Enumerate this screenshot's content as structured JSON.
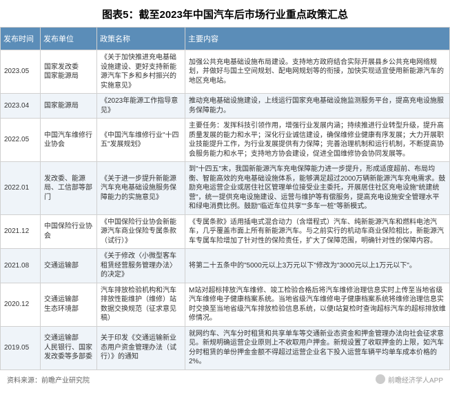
{
  "title": "图表5：截至2023年中国汽车后市场行业重点政策汇总",
  "columns": [
    "发布时间",
    "发布单位",
    "政策名称",
    "主要内容"
  ],
  "rows": [
    {
      "time": "2023.05",
      "unit": "国家发改委\n国家能源局",
      "policy": "《关于加快推进充电基础设施建设、更好支持新能源汽车下乡和乡村振兴的实施意见》",
      "content": "加强公共充电基础设施布局建设。支持地方政府结合实际开展县乡公共充电网络规划，并做好与国土空间规划、配电网规划等的衔接，加快实现适宜使用新能源汽车的地区充电站。"
    },
    {
      "time": "2023.04",
      "unit": "国家能源局",
      "policy": "《2023年能源工作指导意见》",
      "content": "推动充电基础设施建设，上线运行国家充电基础设施监测服务平台，提高充电设施服务保障能力。"
    },
    {
      "time": "2022.05",
      "unit": "中国汽车维修行业协会",
      "policy": "《中国汽车维修行业\"十四五\"发展规划》",
      "content": "主要任务：发挥科技引领作用，增强行业发展内涵；持续推进行业转型升级，提升高质量发展的能力和水平；深化行业诚信建设，确保维修业健康有序发展；大力开展职业技能提升工作，为行业发展提供有力保障；完善治理机制和运行机制，不断提高协会服务能力和水平；支持地方协会建设，促进全国维修协会协同发展等。"
    },
    {
      "time": "2022.01",
      "unit": "发改委、能源局、工信部等部门",
      "policy": "《关于进一步提升新能源汽车充电基础设施服务保障能力的实施意见》",
      "content": "到\"十四五\"末，我国新能源汽车充电保障能力进一步提升，形成适度超前、布局均衡、智能高效的充电基础设施体系，能够满足超过2000万辆新能源汽车充电需求。鼓励充电运营企业或居住社区管理单位接受业主委托，开展居住社区充电设施\"统建统营\"，统一提供充电设施建设、运营与维护等有偿服务，提高充电设施安全管理水平和绿电消费比例。鼓励\"临近车位共享\"\"多车一桩\"等新模式。"
    },
    {
      "time": "2021.12",
      "unit": "中国保险行业协会",
      "policy": "《中国保险行业协会新能源汽车商业保险专属条款（试行）》",
      "content": "《专属条款》适用插电式混合动力（含增程式）汽车、纯新能源汽车和燃料电池汽车，几乎覆盖市面上所有新能源汽车。与之前实行的机动车商业保险相比，新能源汽车专属车险增加了针对性的保险责任，扩大了保障范围，明确针对性的保障内容。"
    },
    {
      "time": "2021.08",
      "unit": "交通运输部",
      "policy": "《关于修改〈小微型客车租赁经营服务管理办法〉的决定》",
      "content": "将第二十五条中的\"5000元以上3万元以下\"修改为\"3000元以上1万元以下\"。"
    },
    {
      "time": "2020.12",
      "unit": "交通运输部\n生态环境部",
      "policy": "汽车排放检验机构和汽车排放性能维护（维修）站数据交换规范（征求意见稿）",
      "content": "M站对超标排放汽车维修、竣工检验合格后将汽车维修治理信息实时上传至当地省级汽车维修电子健康档案系统。当地省级汽车维修电子健康档案系统将维修治理信息实时交换至当地省级汽车排放检验信息系统，以便I站复检时查询超标汽车的超标排放维修情况。"
    },
    {
      "time": "2019.05",
      "unit": "交通运输部\n人民银行、国家发改委等多部委",
      "policy": "关于印发《交通运输新业态用户资金管理办法（试行）》的通知",
      "content": "就网约车、汽车分时租赁和共享单车等交通新业态资金和押金管理办法向社会征求意见。新规明确运营企业原则上不收取用户押金。新规设置了收取押金的上限，如汽车分时租赁的单份押金金额不得超过运营企业名下投入运营车辆平均单车成本价格的2%。"
    }
  ],
  "footer_left": "资料来源：前瞻产业研究院",
  "footer_right": "前瞻经济学人APP",
  "colors": {
    "header_bg": "#5b8db8",
    "header_text": "#ffffff",
    "row_even_bg": "#eff4f9",
    "row_odd_bg": "#ffffff",
    "border": "#d0d0d0",
    "text": "#333333",
    "title_text": "#000000"
  }
}
